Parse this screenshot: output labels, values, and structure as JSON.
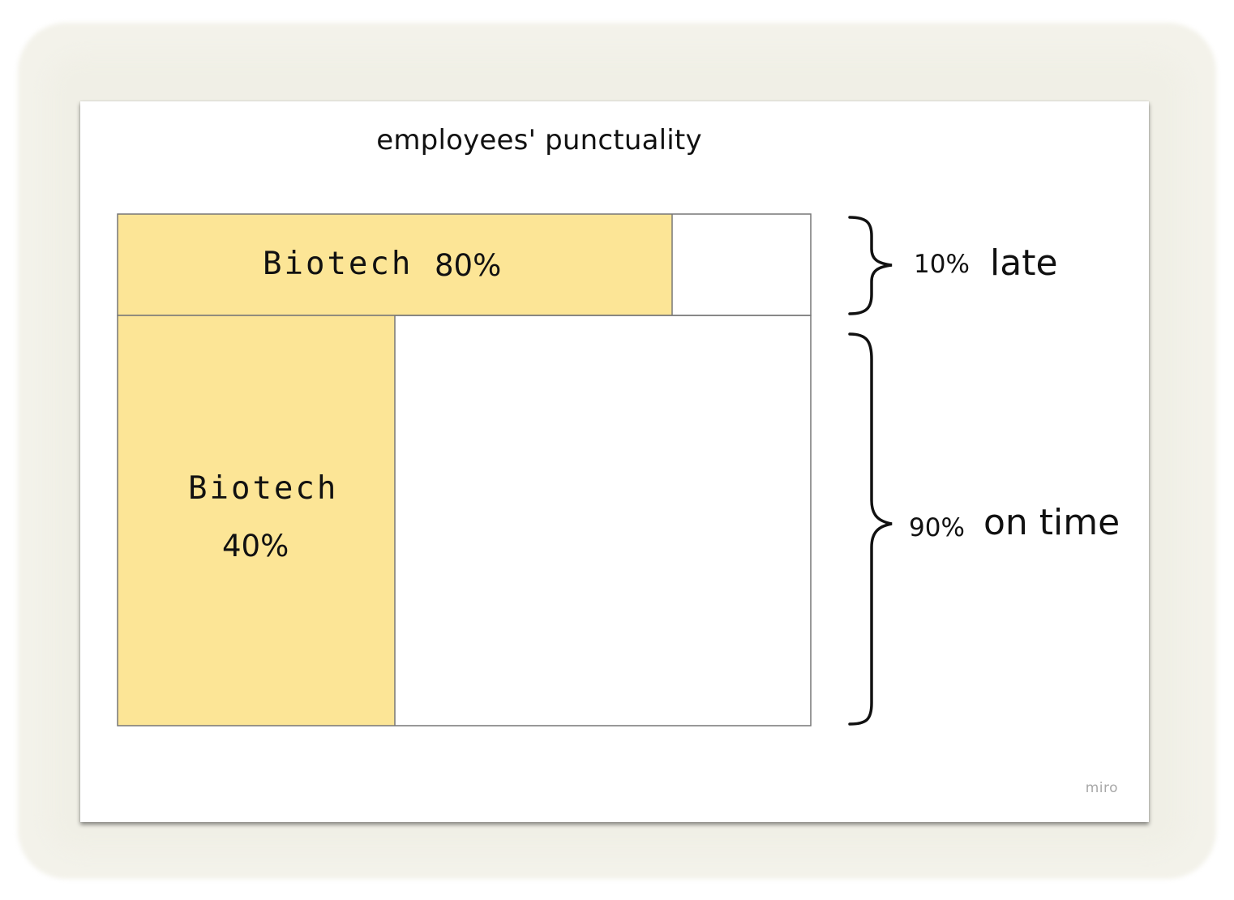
{
  "title": "employees' punctuality",
  "colors": {
    "highlight": "#fce596",
    "border": "#777777",
    "text": "#111111",
    "logo": "#a8a8a8"
  },
  "segments": [
    {
      "id": "late",
      "share_percent": 10,
      "share_label": "10%",
      "label": "late",
      "fill_fraction": 0.8,
      "inner_lines": [
        "Biotech",
        "80%"
      ]
    },
    {
      "id": "on_time",
      "share_percent": 90,
      "share_label": "90%",
      "label": "on time",
      "fill_fraction": 0.4,
      "inner_lines": [
        "Biotech",
        "40%"
      ]
    }
  ],
  "logo_text": "miro"
}
